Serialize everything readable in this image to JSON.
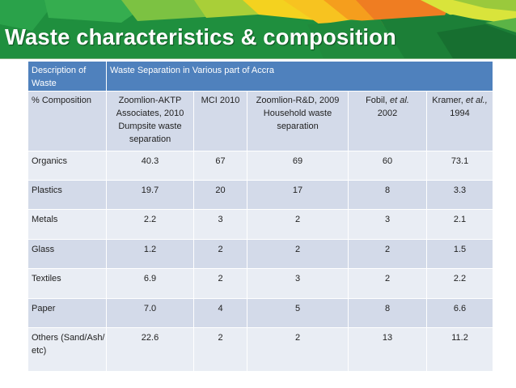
{
  "slide": {
    "title": "Waste characteristics & composition",
    "colors": {
      "header_bg": "#4f81bd",
      "row_dark": "#d3dae9",
      "row_light": "#e9edf4",
      "banner_green": "#1f8f3e",
      "banner_yellow": "#f7c320",
      "banner_orange": "#ef7d22"
    }
  },
  "table": {
    "header": {
      "first": "Description of Waste",
      "span": "Waste Separation in Various part of Accra"
    },
    "subheader": {
      "first": "% Composition",
      "sources": [
        {
          "text": "Zoomlion-AKTP Associates, 2010 Dumpsite waste separation"
        },
        {
          "text": "MCI 2010"
        },
        {
          "text": "Zoomlion-R&D, 2009 Household waste separation"
        },
        {
          "pre": "Fobil, ",
          "em": "et al.",
          "post": " 2002"
        },
        {
          "pre": "Kramer, ",
          "em": "et al.,",
          "post": " 1994"
        }
      ]
    },
    "rows": [
      {
        "label": "Organics",
        "values": [
          "40.3",
          "67",
          "69",
          "60",
          "73.1"
        ]
      },
      {
        "label": "Plastics",
        "values": [
          "19.7",
          "20",
          "17",
          "8",
          "3.3"
        ]
      },
      {
        "label": "Metals",
        "values": [
          "2.2",
          "3",
          "2",
          "3",
          "2.1"
        ]
      },
      {
        "label": "Glass",
        "values": [
          "1.2",
          "2",
          "2",
          "2",
          "1.5"
        ]
      },
      {
        "label": "Textiles",
        "values": [
          "6.9",
          "2",
          "3",
          "2",
          "2.2"
        ]
      },
      {
        "label": "Paper",
        "values": [
          "7.0",
          "4",
          "5",
          "8",
          "6.6"
        ]
      },
      {
        "label": "Others (Sand/Ash/ etc)",
        "values": [
          "22.6",
          "2",
          "2",
          "13",
          "11.2"
        ]
      }
    ]
  }
}
